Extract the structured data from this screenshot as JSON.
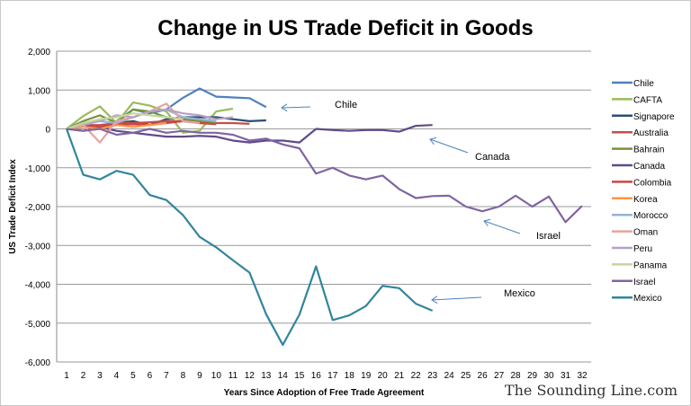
{
  "chart_data": {
    "type": "line",
    "title": "Change in US Trade Deficit in Goods",
    "xlabel": "Years Since Adoption of Free Trade Agreement",
    "ylabel": "US Trade Deficit Index",
    "ylim": [
      -6000,
      2000
    ],
    "yticks": [
      2000,
      1000,
      0,
      -1000,
      -2000,
      -3000,
      -4000,
      -5000,
      -6000
    ],
    "ytick_labels": [
      "2,000",
      "1,000",
      "0",
      "-1,000",
      "-2,000",
      "-3,000",
      "-4,000",
      "-5,000",
      "-6,000"
    ],
    "xlim": [
      1,
      32
    ],
    "grid": "horizontal",
    "legend": "right",
    "series": [
      {
        "name": "Chile",
        "color": "#4f81bd",
        "values": [
          0,
          150,
          0,
          200,
          500,
          400,
          500,
          800,
          1040,
          830,
          810,
          790,
          560
        ]
      },
      {
        "name": "CAFTA",
        "color": "#9bbb59",
        "values": [
          0,
          330,
          580,
          150,
          680,
          600,
          450,
          -100,
          -50,
          450,
          520
        ]
      },
      {
        "name": "Signapore",
        "color": "#2c4d75",
        "values": [
          0,
          100,
          50,
          150,
          200,
          100,
          250,
          300,
          300,
          300,
          250,
          200,
          220
        ]
      },
      {
        "name": "Australia",
        "color": "#c0504d",
        "values": [
          0,
          100,
          100,
          150,
          150,
          170,
          200,
          200,
          150,
          150,
          150,
          130
        ]
      },
      {
        "name": "Bahrain",
        "color": "#77933c",
        "values": [
          0,
          200,
          350,
          150,
          500,
          450,
          300,
          250,
          200,
          150
        ]
      },
      {
        "name": "Canada",
        "color": "#5f4b8b",
        "values": [
          0,
          -50,
          50,
          -50,
          -100,
          -150,
          -200,
          -200,
          -180,
          -200,
          -300,
          -350,
          -300,
          -300,
          -350,
          0,
          -30,
          -50,
          -30,
          -30,
          -70,
          80,
          100
        ]
      },
      {
        "name": "Colombia",
        "color": "#d0433e",
        "values": [
          0,
          100,
          50,
          100,
          120,
          100,
          150,
          200,
          150,
          120
        ]
      },
      {
        "name": "Korea",
        "color": "#f79646",
        "values": [
          0,
          50,
          0,
          100,
          50,
          100,
          150
        ]
      },
      {
        "name": "Morocco",
        "color": "#95b3d7",
        "values": [
          0,
          100,
          200,
          150,
          300,
          450,
          500,
          300,
          250,
          200
        ]
      },
      {
        "name": "Oman",
        "color": "#e6a3a1",
        "values": [
          0,
          100,
          -350,
          200,
          300,
          450,
          650,
          200,
          150
        ]
      },
      {
        "name": "Peru",
        "color": "#b3a2c7",
        "values": [
          0,
          150,
          200,
          350,
          300,
          450,
          500,
          400,
          350,
          250,
          300
        ]
      },
      {
        "name": "Panama",
        "color": "#c3d69b",
        "values": [
          0,
          150,
          250,
          300,
          400,
          350,
          300,
          250
        ]
      },
      {
        "name": "Israel",
        "color": "#8064a2",
        "values": [
          0,
          -50,
          0,
          -150,
          -100,
          0,
          -100,
          -50,
          -100,
          -100,
          -150,
          -300,
          -250,
          -400,
          -500,
          -1150,
          -1000,
          -1200,
          -1300,
          -1200,
          -1550,
          -1780,
          -1730,
          -1720,
          -2000,
          -2120,
          -2000,
          -1720,
          -2000,
          -1740,
          -2400,
          -1980
        ]
      },
      {
        "name": "Mexico",
        "color": "#31859c",
        "values": [
          0,
          -1180,
          -1300,
          -1080,
          -1180,
          -1700,
          -1830,
          -2220,
          -2780,
          -3050,
          -3380,
          -3700,
          -4770,
          -5560,
          -4780,
          -3540,
          -4920,
          -4800,
          -4560,
          -4040,
          -4100,
          -4500,
          -4680
        ]
      }
    ],
    "annotations": [
      {
        "text": "Chile",
        "series": "Chile"
      },
      {
        "text": "Canada",
        "series": "Canada"
      },
      {
        "text": "Israel",
        "series": "Israel"
      },
      {
        "text": "Mexico",
        "series": "Mexico"
      }
    ]
  },
  "watermark": "The Sounding Line.com"
}
